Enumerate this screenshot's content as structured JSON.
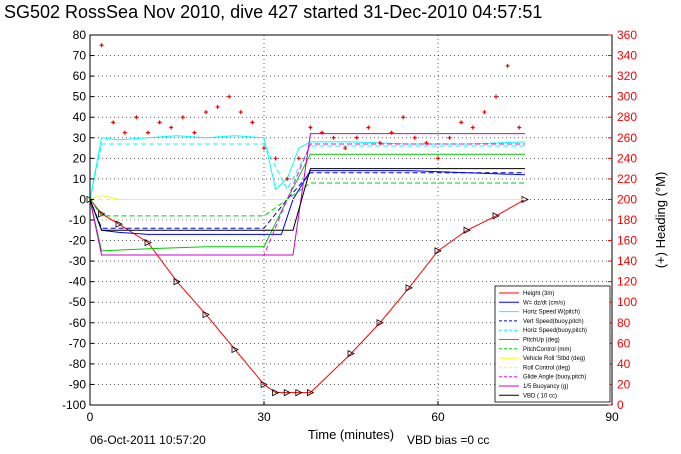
{
  "title": "SG502 RossSea Nov 2010, dive 427 started 31-Dec-2010 04:57:51",
  "footer": {
    "date": "06-Oct-2011 10:57:20",
    "vbd_bias": "VBD bias =0 cc"
  },
  "colors": {
    "height": "#ff0000",
    "w": "#0000ff",
    "horz_speed": "#00ffff",
    "vert_speed_buoy": "#0000cc",
    "horz_speed_buoy": "#00ffff",
    "pitch_up": "#00cc00",
    "pitch_control": "#00cc00",
    "vehicle_roll": "#ffff00",
    "roll_control": "#ffff00",
    "glide_angle": "#ff00ff",
    "buoyancy": "#cc00cc",
    "vbd": "#000000",
    "heading": "#ff0000",
    "right_axis": "#ff0000"
  },
  "chart_data": {
    "type": "line",
    "xlabel": "Time (minutes)",
    "ylabel_right": "(+) Heading (°M)",
    "xlim": [
      0,
      90
    ],
    "ylim": [
      -100,
      80
    ],
    "ylim_right": [
      0,
      360
    ],
    "xticks": [
      0,
      30,
      60,
      90
    ],
    "yticks": [
      -100,
      -90,
      -80,
      -70,
      -60,
      -50,
      -40,
      -30,
      -20,
      -10,
      0,
      10,
      20,
      30,
      40,
      50,
      60,
      70,
      80
    ],
    "yticks_right": [
      0,
      20,
      40,
      60,
      80,
      100,
      120,
      140,
      160,
      180,
      200,
      220,
      240,
      260,
      280,
      300,
      320,
      340,
      360
    ],
    "grid": true,
    "legend_position": "bottom-right",
    "legend": [
      "Height (3m)",
      "W= dz/dt (cm/s)",
      "Horiz Speed W(pitch)",
      "Vert Speed(buoy,pitch)",
      "Horiz Speed(buoy,pitch)",
      "PitchUp (deg)",
      "PitchControl (mm)",
      "Vehicle Roll 'Stbd (deg)",
      "Roll Control (deg)",
      "Glide Angle (buoy,pitch)",
      "1/5 Buoyancy (g)",
      "VBD ( 10 cc)"
    ],
    "series": [
      {
        "name": "Height (3m)",
        "key": "height",
        "style": "solid",
        "x": [
          0,
          2,
          5,
          10,
          15,
          20,
          25,
          30,
          32,
          34,
          36,
          38,
          45,
          50,
          55,
          60,
          65,
          70,
          75
        ],
        "y": [
          0,
          -7,
          -12,
          -21,
          -40,
          -56,
          -73,
          -90,
          -94,
          -94,
          -94,
          -94,
          -75,
          -60,
          -43,
          -25,
          -15,
          -8,
          0
        ]
      },
      {
        "name": "W= dz/dt (cm/s)",
        "key": "w",
        "style": "solid",
        "x": [
          0,
          2,
          5,
          10,
          15,
          20,
          25,
          30,
          33,
          35,
          38,
          45,
          55,
          65,
          75
        ],
        "y": [
          0,
          -15,
          -16,
          -17,
          -17,
          -17,
          -17,
          -17,
          -17,
          0,
          14,
          14,
          14,
          13,
          12
        ]
      },
      {
        "name": "Horiz Speed W(pitch)",
        "key": "horz_speed",
        "style": "solid",
        "x": [
          0,
          2,
          5,
          10,
          15,
          20,
          25,
          30,
          32,
          34,
          36,
          38,
          45,
          55,
          65,
          75
        ],
        "y": [
          0,
          30,
          29,
          30,
          31,
          30,
          31,
          30,
          5,
          10,
          25,
          28,
          28,
          27,
          27,
          28
        ]
      },
      {
        "name": "Vert Speed(buoy,pitch)",
        "key": "vert_speed_buoy",
        "style": "dashed",
        "x": [
          0,
          2,
          10,
          20,
          30,
          34,
          38,
          50,
          60,
          75
        ],
        "y": [
          0,
          -14,
          -14,
          -14,
          -14,
          0,
          13,
          13,
          13,
          13
        ]
      },
      {
        "name": "Horiz Speed(buoy,pitch)",
        "key": "horz_speed_buoy",
        "style": "dashed",
        "x": [
          0,
          2,
          10,
          20,
          30,
          34,
          38,
          50,
          60,
          75
        ],
        "y": [
          0,
          27,
          27,
          27,
          27,
          5,
          26,
          26,
          26,
          26
        ]
      },
      {
        "name": "PitchUp (deg)",
        "key": "pitch_up",
        "style": "solid",
        "x": [
          0,
          2,
          10,
          20,
          30,
          34,
          38,
          50,
          60,
          75
        ],
        "y": [
          0,
          -25,
          -24,
          -23,
          -23,
          0,
          22,
          22,
          22,
          22
        ]
      },
      {
        "name": "PitchControl (mm)",
        "key": "pitch_control",
        "style": "dashed",
        "x": [
          0,
          2,
          10,
          20,
          30,
          34,
          38,
          50,
          60,
          75
        ],
        "y": [
          0,
          -8,
          -8,
          -8,
          -8,
          0,
          8,
          8,
          8,
          8
        ]
      },
      {
        "name": "Vehicle Roll 'Stbd (deg)",
        "key": "vehicle_roll",
        "style": "solid",
        "x": [
          0,
          2,
          5,
          10,
          15,
          20,
          25,
          30,
          33,
          36,
          40,
          50,
          60,
          70,
          75
        ],
        "y": [
          0,
          2,
          0,
          0,
          0,
          0,
          0,
          0,
          0,
          0,
          0,
          0,
          0,
          0,
          0
        ]
      },
      {
        "name": "Roll Control (deg)",
        "key": "roll_control",
        "style": "dashed",
        "x": [
          0,
          10,
          20,
          30,
          40,
          50,
          60,
          75
        ],
        "y": [
          0,
          0,
          0,
          0,
          0,
          0,
          0,
          0
        ]
      },
      {
        "name": "Glide Angle (buoy,pitch)",
        "key": "glide_angle",
        "style": "dashed",
        "x": [
          0,
          2,
          10,
          20,
          30,
          34,
          38,
          50,
          60,
          75
        ],
        "y": [
          0,
          -27,
          -27,
          -27,
          -27,
          0,
          27,
          27,
          27,
          27
        ]
      },
      {
        "name": "1/5 Buoyancy (g)",
        "key": "buoyancy",
        "style": "solid",
        "x": [
          0,
          2,
          10,
          20,
          30,
          35,
          38,
          50,
          60,
          75
        ],
        "y": [
          0,
          -27,
          -27,
          -27,
          -27,
          -27,
          32,
          32,
          32,
          32
        ]
      },
      {
        "name": "VBD ( 10 cc)",
        "key": "vbd",
        "style": "solid",
        "x": [
          0,
          2,
          10,
          20,
          30,
          35,
          38,
          50,
          60,
          75
        ],
        "y": [
          0,
          -15,
          -15,
          -15,
          -15,
          -15,
          15,
          15,
          15,
          15
        ]
      }
    ],
    "heading_series": {
      "name": "Heading (°M)",
      "key": "heading",
      "axis": "right",
      "x": [
        2,
        4,
        6,
        8,
        10,
        12,
        14,
        16,
        18,
        20,
        22,
        24,
        26,
        28,
        30,
        32,
        34,
        36,
        38,
        40,
        42,
        44,
        46,
        48,
        50,
        52,
        54,
        56,
        58,
        60,
        62,
        64,
        66,
        68,
        70,
        72,
        74
      ],
      "y": [
        350,
        275,
        265,
        280,
        265,
        275,
        270,
        280,
        265,
        285,
        290,
        300,
        285,
        275,
        250,
        240,
        220,
        240,
        270,
        265,
        260,
        250,
        260,
        270,
        255,
        265,
        280,
        260,
        255,
        240,
        260,
        275,
        270,
        285,
        300,
        330,
        270
      ]
    }
  }
}
